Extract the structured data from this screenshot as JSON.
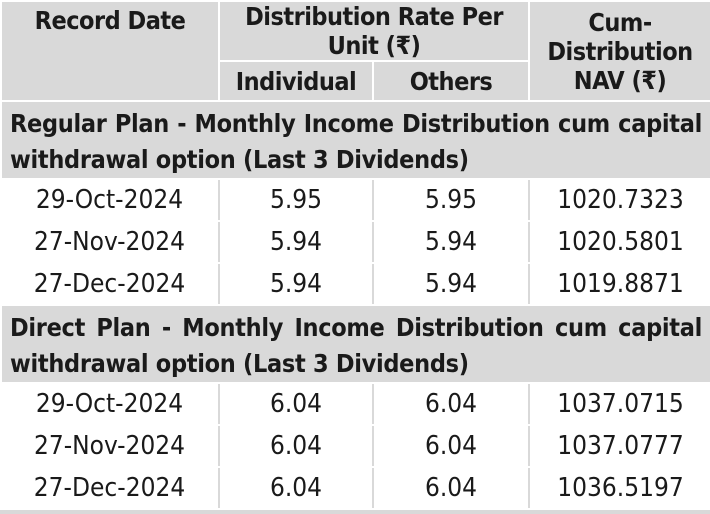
{
  "header": {
    "record_date": "Record Date",
    "distribution_rate": "Distribution Rate Per Unit  (₹)",
    "individual": "Individual",
    "others": "Others",
    "nav_line1": "Cum-Distribution",
    "nav_line2": "NAV (₹)"
  },
  "sections": [
    {
      "title": "Regular Plan - Monthly Income Distribution cum capital withdrawal option (Last 3 Dividends)",
      "rows": [
        {
          "date": "29-Oct-2024",
          "individual": "5.95",
          "others": "5.95",
          "nav": "1020.7323"
        },
        {
          "date": "27-Nov-2024",
          "individual": "5.94",
          "others": "5.94",
          "nav": "1020.5801"
        },
        {
          "date": "27-Dec-2024",
          "individual": "5.94",
          "others": "5.94",
          "nav": "1019.8871"
        }
      ]
    },
    {
      "title": "Direct Plan - Monthly Income Distribution cum capital withdrawal option (Last 3 Dividends)",
      "rows": [
        {
          "date": "29-Oct-2024",
          "individual": "6.04",
          "others": "6.04",
          "nav": "1037.0715"
        },
        {
          "date": "27-Nov-2024",
          "individual": "6.04",
          "others": "6.04",
          "nav": "1037.0777"
        },
        {
          "date": "27-Dec-2024",
          "individual": "6.04",
          "others": "6.04",
          "nav": "1036.5197"
        }
      ]
    }
  ]
}
